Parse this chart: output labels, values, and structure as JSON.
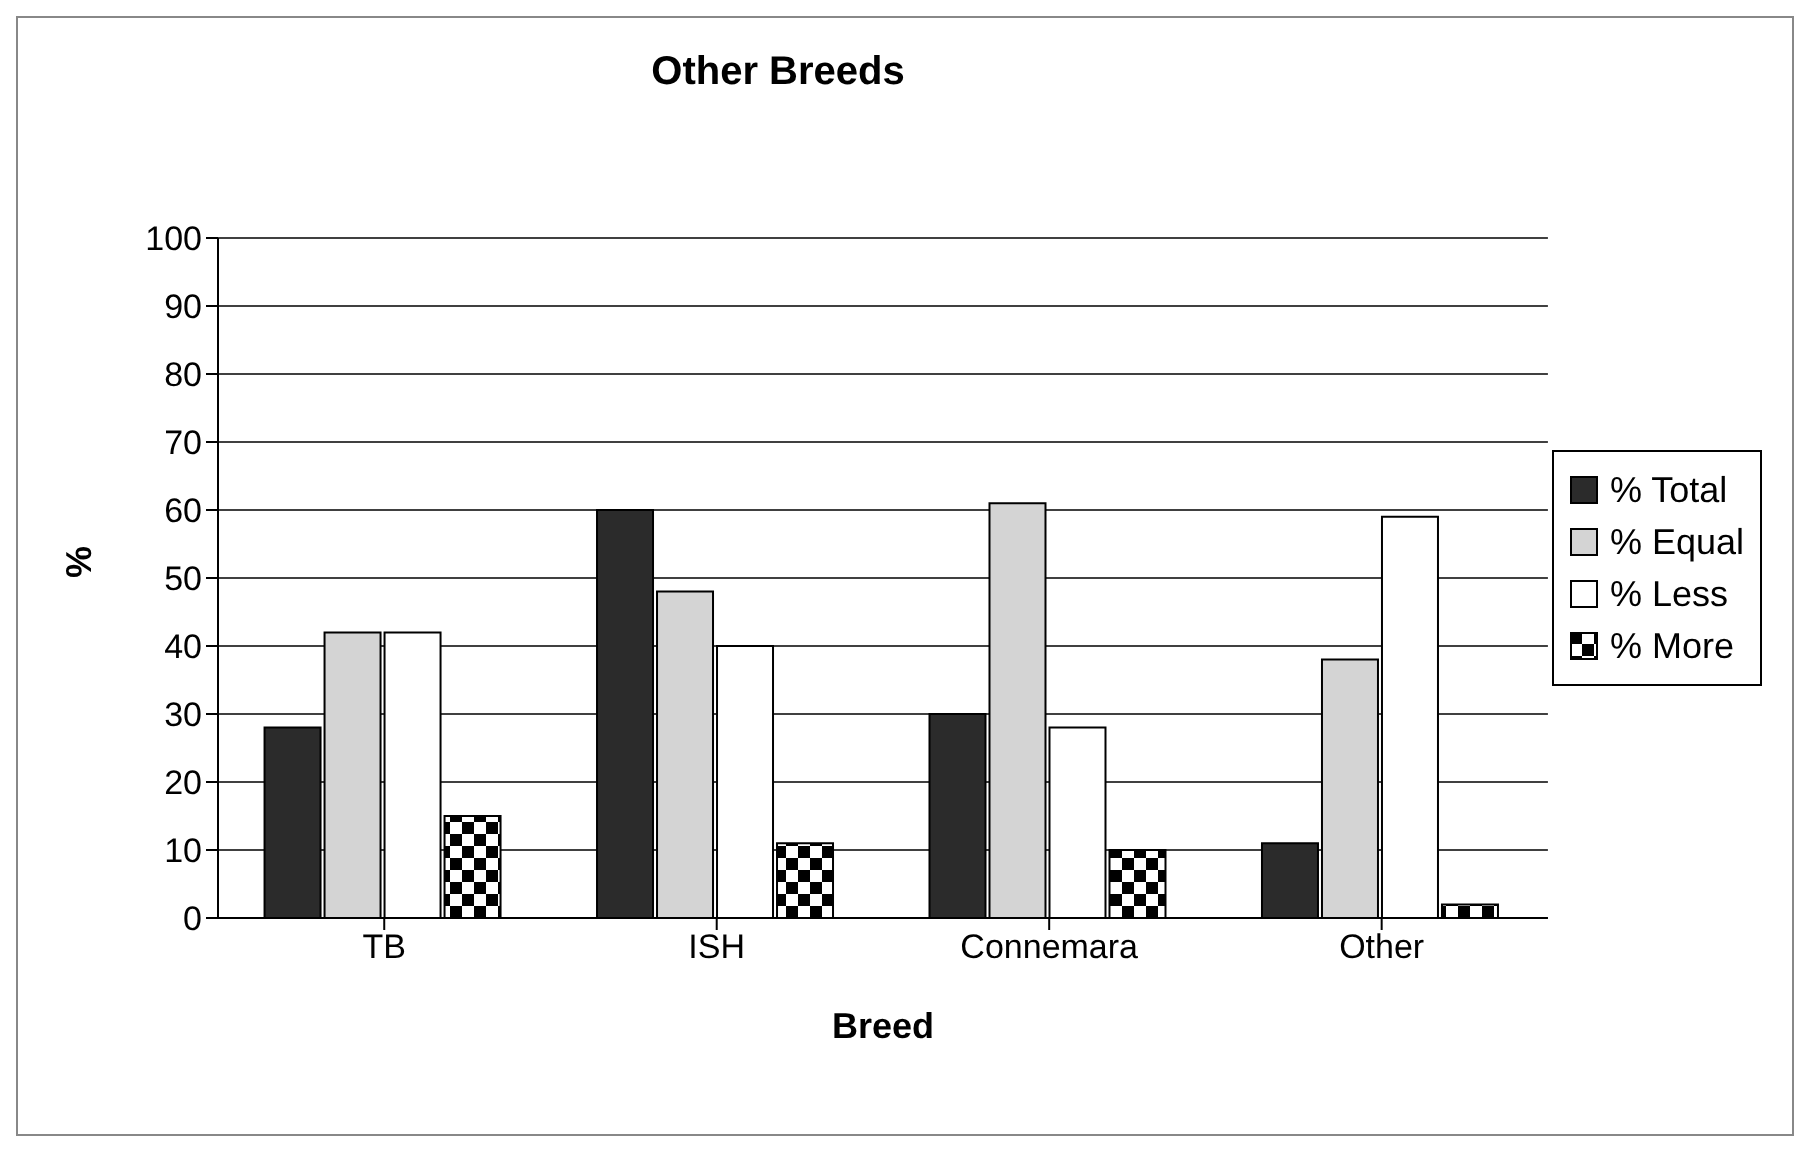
{
  "chart_data": {
    "type": "bar",
    "title": "Other Breeds",
    "xlabel": "Breed",
    "ylabel": "%",
    "categories": [
      "TB",
      "ISH",
      "Connemara",
      "Other"
    ],
    "series": [
      {
        "name": "% Total",
        "color": "#2b2b2b",
        "values": [
          28,
          60,
          30,
          11
        ]
      },
      {
        "name": "% Equal",
        "color": "#d4d4d4",
        "values": [
          42,
          48,
          61,
          38
        ]
      },
      {
        "name": "% Less",
        "color": "#ffffff",
        "values": [
          42,
          40,
          28,
          59
        ]
      },
      {
        "name": "% More",
        "color": "#000000",
        "values": [
          15,
          11,
          10,
          2
        ]
      }
    ],
    "ylim": [
      0,
      100
    ],
    "yticks": [
      0,
      10,
      20,
      30,
      40,
      50,
      60,
      70,
      80,
      90,
      100
    ],
    "grid": "y",
    "legend": "right"
  }
}
